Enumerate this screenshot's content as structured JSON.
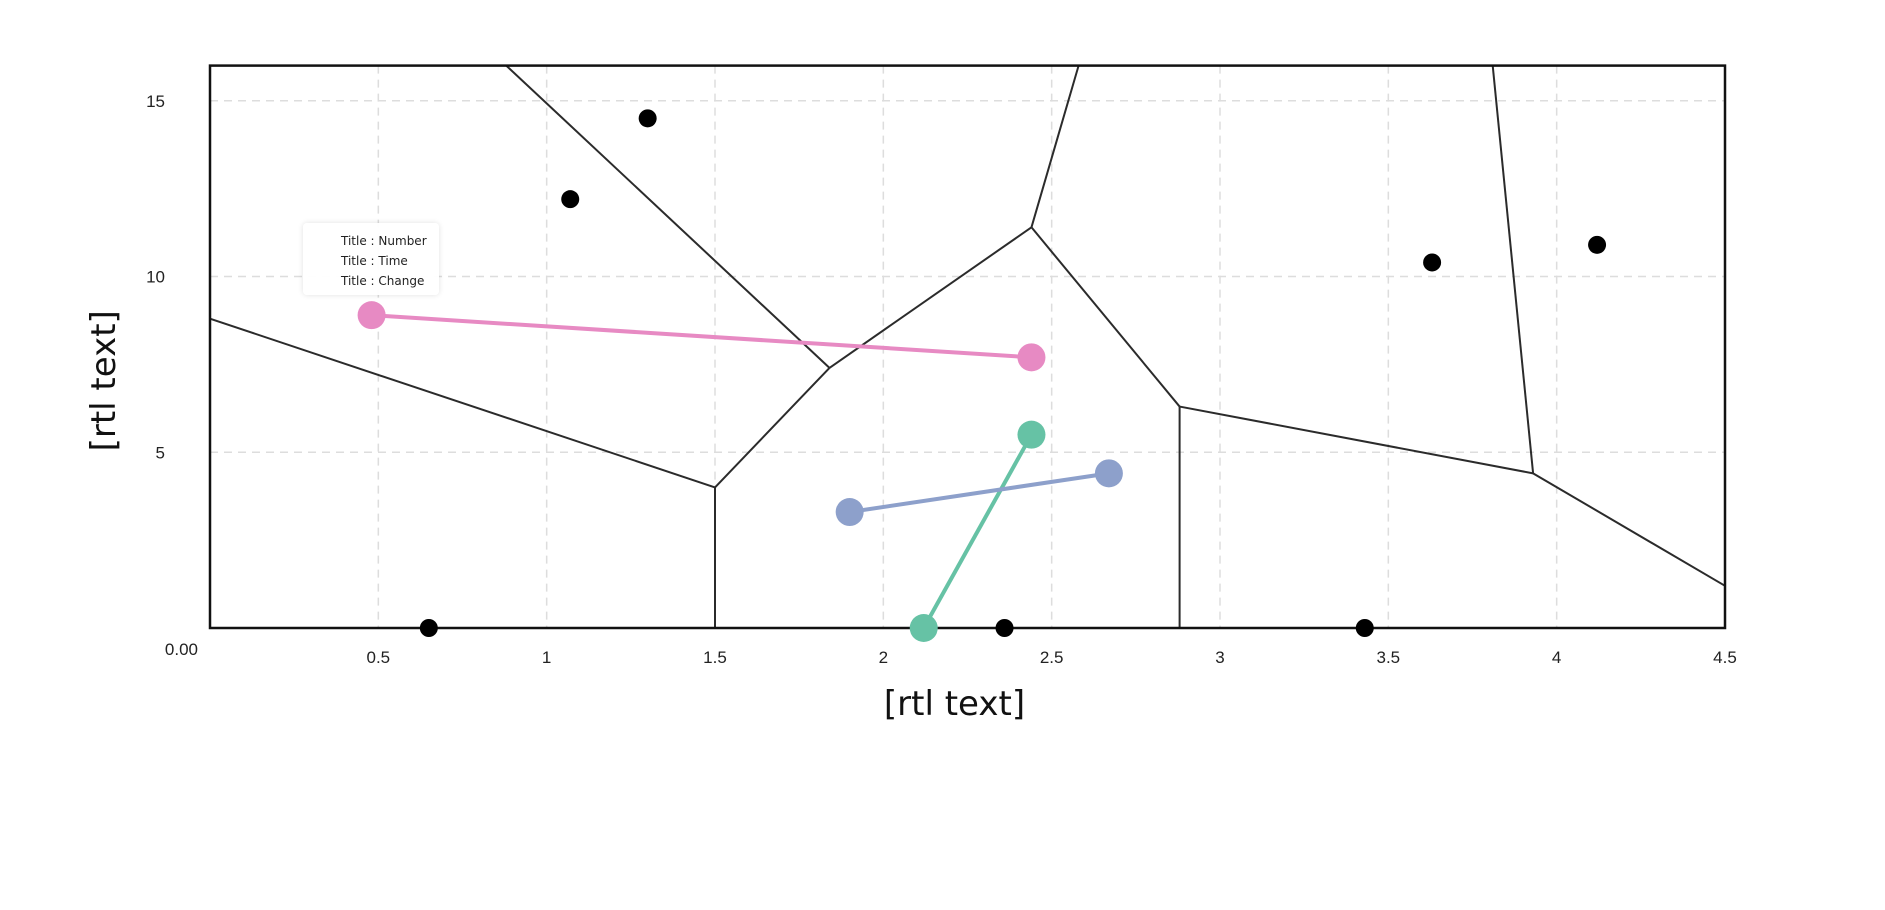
{
  "chart_data": {
    "type": "scatter",
    "xlabel": "[rtl text]",
    "ylabel": "[rtl text]",
    "xlim": [
      0,
      4.5
    ],
    "ylim": [
      0,
      16
    ],
    "x_ticks": [
      0.5,
      1,
      1.5,
      2,
      2.5,
      3,
      3.5,
      4,
      4.5
    ],
    "x_tick_labels": [
      "0.5",
      "1",
      "1.5",
      "2",
      "2.5",
      "3",
      "3.5",
      "4",
      "4.5"
    ],
    "y_ticks": [
      5,
      10,
      15
    ],
    "y_tick_labels": [
      "5",
      "10",
      "15"
    ],
    "origin_label": "0.00",
    "grid": true,
    "sites": [
      {
        "x": 0.65,
        "y": 0.0
      },
      {
        "x": 1.07,
        "y": 12.2
      },
      {
        "x": 1.3,
        "y": 14.5
      },
      {
        "x": 2.36,
        "y": 0.0
      },
      {
        "x": 3.43,
        "y": 0.0
      },
      {
        "x": 3.63,
        "y": 10.4
      },
      {
        "x": 4.12,
        "y": 10.9
      }
    ],
    "voronoi_edges": [
      [
        [
          0.0,
          8.8
        ],
        [
          1.5,
          4.0
        ]
      ],
      [
        [
          1.5,
          4.0
        ],
        [
          1.5,
          0.0
        ]
      ],
      [
        [
          1.5,
          4.0
        ],
        [
          1.84,
          7.4
        ]
      ],
      [
        [
          1.84,
          7.4
        ],
        [
          0.88,
          16.0
        ]
      ],
      [
        [
          1.84,
          7.4
        ],
        [
          2.44,
          11.4
        ]
      ],
      [
        [
          2.44,
          11.4
        ],
        [
          2.58,
          16.0
        ]
      ],
      [
        [
          2.44,
          11.4
        ],
        [
          2.88,
          6.3
        ]
      ],
      [
        [
          2.88,
          6.3
        ],
        [
          2.88,
          0.0
        ]
      ],
      [
        [
          2.88,
          6.3
        ],
        [
          3.93,
          4.4
        ]
      ],
      [
        [
          3.93,
          4.4
        ],
        [
          3.81,
          16.0
        ]
      ],
      [
        [
          3.93,
          4.4
        ],
        [
          4.5,
          1.2
        ]
      ]
    ],
    "series": [
      {
        "color": "#e78ac3",
        "points": [
          {
            "x": 0.48,
            "y": 8.9
          },
          {
            "x": 2.44,
            "y": 7.7
          }
        ]
      },
      {
        "color": "#66c2a5",
        "points": [
          {
            "x": 2.12,
            "y": 0.0
          },
          {
            "x": 2.44,
            "y": 5.5
          }
        ]
      },
      {
        "color": "#8da0cb",
        "points": [
          {
            "x": 1.9,
            "y": 3.3
          },
          {
            "x": 2.67,
            "y": 4.4
          }
        ]
      }
    ],
    "tooltip": [
      {
        "key": "Title",
        "sep": ":",
        "value": "Number"
      },
      {
        "key": "Title",
        "sep": ":",
        "value": "Time"
      },
      {
        "key": "Title",
        "sep": ":",
        "value": "Change"
      }
    ]
  }
}
